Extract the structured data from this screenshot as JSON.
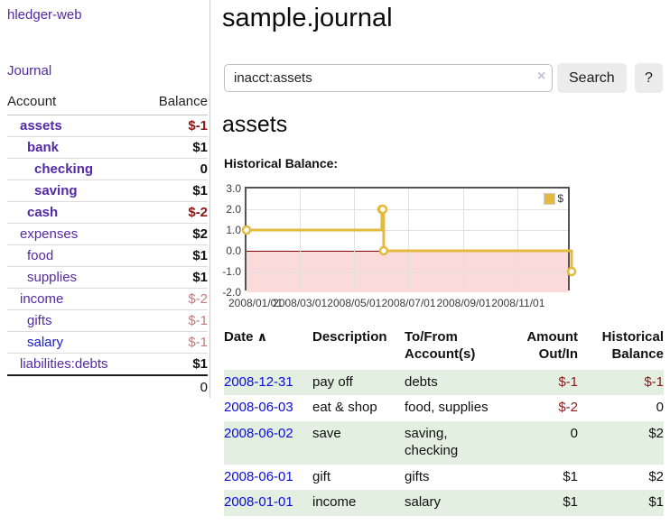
{
  "brand": "hledger-web",
  "nav": {
    "journal": "Journal"
  },
  "sidebar": {
    "account_header": "Account",
    "balance_header": "Balance",
    "accounts": [
      {
        "name": "assets",
        "balance": "$-1"
      },
      {
        "name": "bank",
        "balance": "$1"
      },
      {
        "name": "checking",
        "balance": "0"
      },
      {
        "name": "saving",
        "balance": "$1"
      },
      {
        "name": "cash",
        "balance": "$-2"
      },
      {
        "name": "expenses",
        "balance": "$2"
      },
      {
        "name": "food",
        "balance": "$1"
      },
      {
        "name": "supplies",
        "balance": "$1"
      },
      {
        "name": "income",
        "balance": "$-2"
      },
      {
        "name": "gifts",
        "balance": "$-1"
      },
      {
        "name": "salary",
        "balance": "$-1"
      },
      {
        "name": "liabilities:debts",
        "balance": "$1"
      }
    ],
    "total": "0"
  },
  "header": {
    "title": "sample.journal"
  },
  "search": {
    "value": "inacct:assets",
    "clear_icon": "×",
    "button_label": "Search",
    "help_label": "?"
  },
  "register": {
    "heading": "assets"
  },
  "chart_data": {
    "type": "line",
    "title": "Historical Balance:",
    "step": true,
    "series": [
      {
        "name": "$",
        "color": "#e4ba3e",
        "points": [
          [
            "2008-01-01",
            1
          ],
          [
            "2008-06-01",
            2
          ],
          [
            "2008-06-02",
            2
          ],
          [
            "2008-06-03",
            0
          ],
          [
            "2008-12-31",
            -1
          ]
        ]
      }
    ],
    "xlim": [
      "2008-01-01",
      "2008-12-31"
    ],
    "ylim": [
      -2,
      3
    ],
    "y_ticks": [
      3.0,
      2.0,
      1.0,
      0.0,
      -1.0,
      -2.0
    ],
    "x_ticks": [
      "2008/01/01",
      "2008/03/01",
      "2008/05/01",
      "2008/07/01",
      "2008/09/01",
      "2008/11/01"
    ],
    "grid": true,
    "negative_fill": "#fbdada",
    "zero_line_color": "#8b0000",
    "legend_position": "top-right"
  },
  "table": {
    "sort_icon": "∧",
    "headers": [
      "Date",
      "Description",
      "To/From Account(s)",
      "Amount Out/In",
      "Historical Balance"
    ],
    "rows": [
      {
        "date": "2008-12-31",
        "description": "pay off",
        "to_from": "debts",
        "amount": "$-1",
        "balance": "$-1"
      },
      {
        "date": "2008-06-03",
        "description": "eat & shop",
        "to_from": "food, supplies",
        "amount": "$-2",
        "balance": "0"
      },
      {
        "date": "2008-06-02",
        "description": "save",
        "to_from": "saving,\nchecking",
        "amount": "0",
        "balance": "$2"
      },
      {
        "date": "2008-06-01",
        "description": "gift",
        "to_from": "gifts",
        "amount": "$1",
        "balance": "$2"
      },
      {
        "date": "2008-01-01",
        "description": "income",
        "to_from": "salary",
        "amount": "$1",
        "balance": "$1"
      }
    ]
  }
}
